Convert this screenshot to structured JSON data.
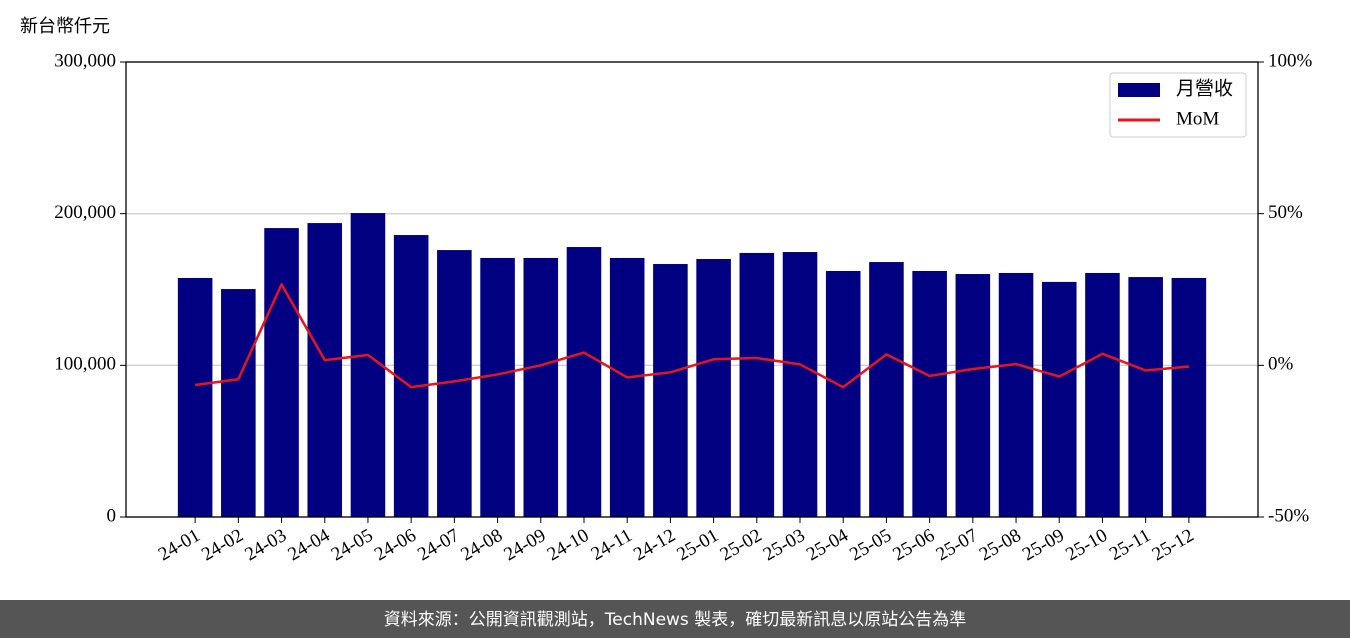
{
  "chart_data": {
    "type": "bar-line",
    "y_label": "新台幣仟元",
    "categories": [
      "24-01",
      "24-02",
      "24-03",
      "24-04",
      "24-05",
      "24-06",
      "24-07",
      "24-08",
      "24-09",
      "24-10",
      "24-11",
      "24-12",
      "25-01",
      "25-02",
      "25-03",
      "25-04",
      "25-05",
      "25-06",
      "25-07",
      "25-08",
      "25-09",
      "25-10",
      "25-11",
      "25-12"
    ],
    "series": [
      {
        "name": "月營收",
        "type": "bar",
        "color": "#000080",
        "values": [
          157600,
          150300,
          190500,
          193800,
          200400,
          185900,
          176000,
          170800,
          170800,
          178000,
          170800,
          166800,
          170100,
          174100,
          174700,
          162200,
          168100,
          162200,
          160200,
          160900,
          155000,
          160900,
          158200,
          157600
        ]
      },
      {
        "name": "MoM",
        "type": "line",
        "axis": "y2",
        "color": "#e8141c",
        "values": [
          -6.5,
          -4.6,
          26.7,
          1.7,
          3.4,
          -7.2,
          -5.3,
          -3.0,
          0,
          4.2,
          -4.0,
          -2.3,
          2.0,
          2.4,
          0.3,
          -7.2,
          3.6,
          -3.5,
          -1.2,
          0.4,
          -3.7,
          3.8,
          -1.7,
          -0.4
        ]
      }
    ],
    "ylim": [
      0,
      300000
    ],
    "yticks": [
      0,
      {
        "value": 100000,
        "label": "100,000"
      },
      {
        "value": 200000,
        "label": "200,000"
      },
      {
        "value": 300000,
        "label": "300,000"
      }
    ],
    "y2lim": [
      -50,
      100
    ],
    "y2ticks": [
      {
        "value": -50,
        "label": "-50%"
      },
      {
        "value": 0,
        "label": "0%"
      },
      {
        "value": 50,
        "label": "50%"
      },
      {
        "value": 100,
        "label": "100%"
      }
    ],
    "grid": true,
    "legend": "upper right"
  },
  "footer": "資料來源：公開資訊觀測站，TechNews 製表，確切最新訊息以原站公告為準"
}
